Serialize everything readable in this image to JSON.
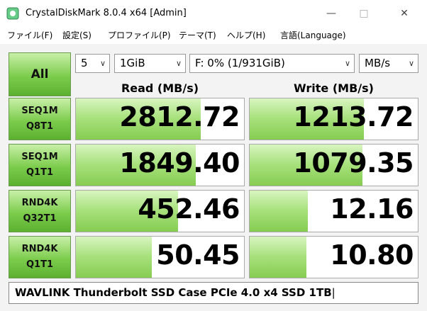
{
  "window": {
    "title": "CrystalDiskMark 8.0.4 x64 [Admin]"
  },
  "menu": [
    "ファイル(F)",
    "設定(S)",
    "プロファイル(P)",
    "テーマ(T)",
    "ヘルプ(H)",
    "言語(Language)"
  ],
  "controls": {
    "all_button": "All",
    "count": "5",
    "size": "1GiB",
    "drive": "F: 0% (1/931GiB)",
    "unit": "MB/s"
  },
  "headers": {
    "read": "Read (MB/s)",
    "write": "Write (MB/s)"
  },
  "rows": [
    {
      "label": [
        "SEQ1M",
        "Q8T1"
      ],
      "read": "2812.72",
      "write": "1213.72"
    },
    {
      "label": [
        "SEQ1M",
        "Q1T1"
      ],
      "read": "1849.40",
      "write": "1079.35"
    },
    {
      "label": [
        "RND4K",
        "Q32T1"
      ],
      "read": "452.46",
      "write": "12.16"
    },
    {
      "label": [
        "RND4K",
        "Q1T1"
      ],
      "read": "50.45",
      "write": "10.80"
    }
  ],
  "comment": "WAVLINK Thunderbolt SSD Case PCIe 4.0 x4 SSD 1TB"
}
